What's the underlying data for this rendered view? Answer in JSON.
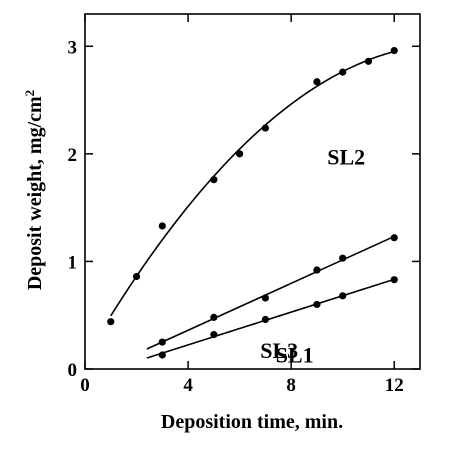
{
  "chart_data": {
    "type": "scatter",
    "title": "",
    "xlabel": "Deposition time, min.",
    "ylabel": "Deposit weight, mg/cm",
    "ylabel_superscript": "2",
    "xlim": [
      0,
      13
    ],
    "ylim": [
      0,
      3.3
    ],
    "xticks": [
      0,
      4,
      8,
      12
    ],
    "yticks": [
      0,
      1,
      2,
      3
    ],
    "x_tick_labels": [
      "0",
      "4",
      "8",
      "12"
    ],
    "y_tick_labels": [
      "0",
      "1",
      "2",
      "3"
    ],
    "grid": false,
    "legend": "none",
    "series": [
      {
        "name": "SL2",
        "points": [
          [
            1,
            0.44
          ],
          [
            2,
            0.86
          ],
          [
            3,
            1.33
          ],
          [
            5,
            1.76
          ],
          [
            6,
            2.0
          ],
          [
            7,
            2.24
          ],
          [
            9,
            2.67
          ],
          [
            10,
            2.76
          ],
          [
            11,
            2.86
          ],
          [
            12,
            2.96
          ]
        ],
        "fit": "quadratic"
      },
      {
        "name": "SL1",
        "points": [
          [
            3,
            0.25
          ],
          [
            5,
            0.48
          ],
          [
            7,
            0.66
          ],
          [
            9,
            0.92
          ],
          [
            10,
            1.03
          ],
          [
            12,
            1.22
          ]
        ],
        "fit": "linear"
      },
      {
        "name": "SL3",
        "points": [
          [
            3,
            0.13
          ],
          [
            5,
            0.32
          ],
          [
            7,
            0.46
          ],
          [
            9,
            0.6
          ],
          [
            10,
            0.68
          ],
          [
            12,
            0.83
          ]
        ],
        "fit": "linear"
      }
    ],
    "colors": {
      "ink": "#000000",
      "background": "#ffffff"
    }
  }
}
